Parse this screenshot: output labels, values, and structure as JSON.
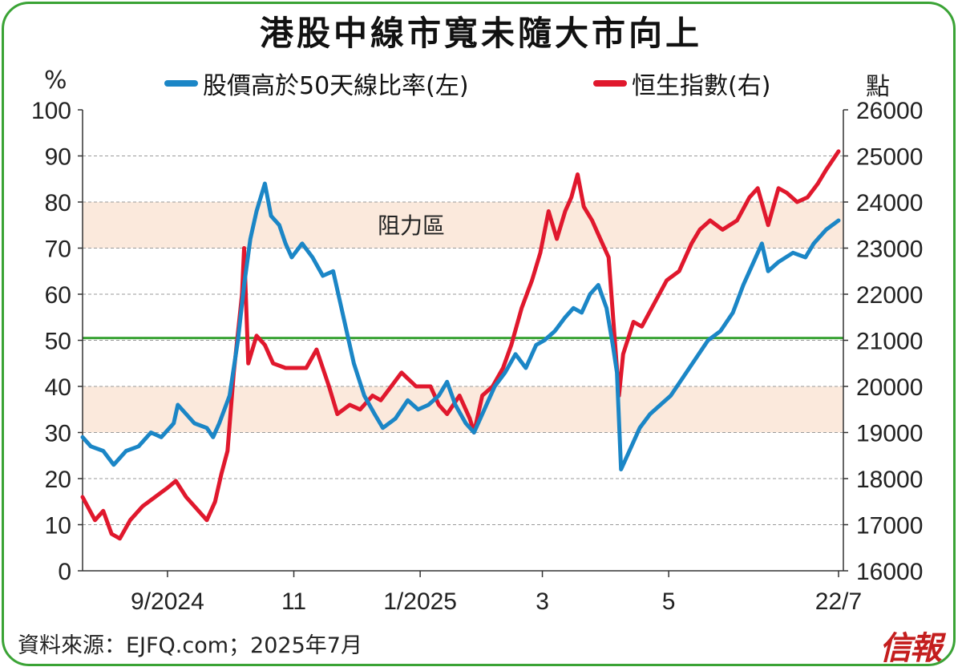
{
  "title": "港股中線市寬未隨大市向上",
  "left_unit": "%",
  "right_unit": "點",
  "legend": {
    "series1": "股價高於50天線比率(左)",
    "series2": "恒生指數(右)"
  },
  "source": "資料來源：EJFQ.com；2025年7月",
  "logo": "信報",
  "colors": {
    "blue": "#1b86c6",
    "red": "#e0182d",
    "green": "#3aa335",
    "band": "#fbe9dc"
  },
  "chart_data": {
    "type": "line",
    "title": "港股中線市寬未隨大市向上",
    "x_start": "2024-07-22",
    "x_end": "2025-07-22",
    "x_ticks": [
      {
        "label": "9/2024",
        "date": "2024-09-01"
      },
      {
        "label": "11",
        "date": "2024-11-01"
      },
      {
        "label": "1/2025",
        "date": "2025-01-01"
      },
      {
        "label": "3",
        "date": "2025-03-01"
      },
      {
        "label": "5",
        "date": "2025-05-01"
      },
      {
        "label": "22/7",
        "date": "2025-07-22"
      }
    ],
    "y_left": {
      "label": "%",
      "min": 0,
      "max": 100,
      "step": 10,
      "ticks": [
        "0",
        "10",
        "20",
        "30",
        "40",
        "50",
        "60",
        "70",
        "80",
        "90",
        "100"
      ]
    },
    "y_right": {
      "label": "點",
      "min": 16000,
      "max": 26000,
      "step": 1000,
      "ticks": [
        "16000",
        "17000",
        "18000",
        "19000",
        "20000",
        "21000",
        "22000",
        "23000",
        "24000",
        "25000",
        "26000"
      ]
    },
    "reference_line": {
      "axis": "left",
      "value": 50.5
    },
    "bands": [
      {
        "label": "阻力區",
        "from": 70,
        "to": 80
      },
      {
        "label": "",
        "from": 30,
        "to": 40
      }
    ],
    "grid": true,
    "series": [
      {
        "name": "股價高於50天線比率(左)",
        "axis": "left",
        "color": "#1b86c6",
        "points": [
          [
            "2024-07-22",
            29
          ],
          [
            "2024-07-26",
            27
          ],
          [
            "2024-08-01",
            26
          ],
          [
            "2024-08-06",
            23
          ],
          [
            "2024-08-12",
            26
          ],
          [
            "2024-08-18",
            27
          ],
          [
            "2024-08-24",
            30
          ],
          [
            "2024-08-29",
            29
          ],
          [
            "2024-09-04",
            32
          ],
          [
            "2024-09-06",
            36
          ],
          [
            "2024-09-10",
            34
          ],
          [
            "2024-09-14",
            32
          ],
          [
            "2024-09-20",
            31
          ],
          [
            "2024-09-23",
            29
          ],
          [
            "2024-09-26",
            32
          ],
          [
            "2024-10-01",
            38
          ],
          [
            "2024-10-05",
            50
          ],
          [
            "2024-10-08",
            62
          ],
          [
            "2024-10-11",
            72
          ],
          [
            "2024-10-14",
            78
          ],
          [
            "2024-10-18",
            84
          ],
          [
            "2024-10-21",
            77
          ],
          [
            "2024-10-25",
            75
          ],
          [
            "2024-10-28",
            71
          ],
          [
            "2024-10-31",
            68
          ],
          [
            "2024-11-05",
            71
          ],
          [
            "2024-11-10",
            68
          ],
          [
            "2024-11-15",
            64
          ],
          [
            "2024-11-20",
            65
          ],
          [
            "2024-11-25",
            55
          ],
          [
            "2024-11-30",
            45
          ],
          [
            "2024-12-05",
            38
          ],
          [
            "2024-12-10",
            34
          ],
          [
            "2024-12-14",
            31
          ],
          [
            "2024-12-20",
            33
          ],
          [
            "2024-12-26",
            37
          ],
          [
            "2024-12-31",
            35
          ],
          [
            "2025-01-05",
            36
          ],
          [
            "2025-01-10",
            38
          ],
          [
            "2025-01-14",
            41
          ],
          [
            "2025-01-18",
            36
          ],
          [
            "2025-01-23",
            32
          ],
          [
            "2025-01-27",
            30
          ],
          [
            "2025-02-01",
            35
          ],
          [
            "2025-02-06",
            40
          ],
          [
            "2025-02-11",
            43
          ],
          [
            "2025-02-16",
            47
          ],
          [
            "2025-02-21",
            44
          ],
          [
            "2025-02-26",
            49
          ],
          [
            "2025-03-02",
            50
          ],
          [
            "2025-03-07",
            52
          ],
          [
            "2025-03-12",
            55
          ],
          [
            "2025-03-16",
            57
          ],
          [
            "2025-03-20",
            56
          ],
          [
            "2025-03-24",
            60
          ],
          [
            "2025-03-28",
            62
          ],
          [
            "2025-04-01",
            57
          ],
          [
            "2025-04-04",
            49
          ],
          [
            "2025-04-06",
            43
          ],
          [
            "2025-04-08",
            22
          ],
          [
            "2025-04-12",
            26
          ],
          [
            "2025-04-17",
            31
          ],
          [
            "2025-04-22",
            34
          ],
          [
            "2025-04-27",
            36
          ],
          [
            "2025-05-02",
            38
          ],
          [
            "2025-05-08",
            42
          ],
          [
            "2025-05-14",
            46
          ],
          [
            "2025-05-20",
            50
          ],
          [
            "2025-05-26",
            52
          ],
          [
            "2025-06-01",
            56
          ],
          [
            "2025-06-06",
            62
          ],
          [
            "2025-06-11",
            67
          ],
          [
            "2025-06-15",
            71
          ],
          [
            "2025-06-18",
            65
          ],
          [
            "2025-06-23",
            67
          ],
          [
            "2025-06-30",
            69
          ],
          [
            "2025-07-06",
            68
          ],
          [
            "2025-07-10",
            71
          ],
          [
            "2025-07-16",
            74
          ],
          [
            "2025-07-22",
            76
          ]
        ]
      },
      {
        "name": "恒生指數(右)",
        "axis": "right",
        "color": "#e0182d",
        "points": [
          [
            "2024-07-22",
            17600
          ],
          [
            "2024-07-28",
            17100
          ],
          [
            "2024-08-01",
            17300
          ],
          [
            "2024-08-05",
            16800
          ],
          [
            "2024-08-09",
            16700
          ],
          [
            "2024-08-14",
            17100
          ],
          [
            "2024-08-20",
            17400
          ],
          [
            "2024-08-26",
            17600
          ],
          [
            "2024-09-01",
            17800
          ],
          [
            "2024-09-05",
            17950
          ],
          [
            "2024-09-10",
            17600
          ],
          [
            "2024-09-16",
            17300
          ],
          [
            "2024-09-20",
            17100
          ],
          [
            "2024-09-24",
            17500
          ],
          [
            "2024-09-27",
            18100
          ],
          [
            "2024-09-30",
            18600
          ],
          [
            "2024-10-03",
            20300
          ],
          [
            "2024-10-07",
            22000
          ],
          [
            "2024-10-08",
            23000
          ],
          [
            "2024-10-10",
            20500
          ],
          [
            "2024-10-14",
            21100
          ],
          [
            "2024-10-18",
            20900
          ],
          [
            "2024-10-22",
            20500
          ],
          [
            "2024-10-28",
            20400
          ],
          [
            "2024-11-01",
            20400
          ],
          [
            "2024-11-07",
            20400
          ],
          [
            "2024-11-12",
            20800
          ],
          [
            "2024-11-18",
            20000
          ],
          [
            "2024-11-22",
            19400
          ],
          [
            "2024-11-28",
            19600
          ],
          [
            "2024-12-03",
            19500
          ],
          [
            "2024-12-09",
            19800
          ],
          [
            "2024-12-13",
            19700
          ],
          [
            "2024-12-18",
            20000
          ],
          [
            "2024-12-23",
            20300
          ],
          [
            "2024-12-30",
            20000
          ],
          [
            "2025-01-06",
            20000
          ],
          [
            "2025-01-10",
            19600
          ],
          [
            "2025-01-14",
            19400
          ],
          [
            "2025-01-20",
            19800
          ],
          [
            "2025-01-25",
            19300
          ],
          [
            "2025-01-27",
            19000
          ],
          [
            "2025-01-31",
            19800
          ],
          [
            "2025-02-05",
            20000
          ],
          [
            "2025-02-10",
            20400
          ],
          [
            "2025-02-14",
            20900
          ],
          [
            "2025-02-19",
            21700
          ],
          [
            "2025-02-24",
            22300
          ],
          [
            "2025-02-28",
            22900
          ],
          [
            "2025-03-04",
            23800
          ],
          [
            "2025-03-08",
            23200
          ],
          [
            "2025-03-12",
            23800
          ],
          [
            "2025-03-15",
            24100
          ],
          [
            "2025-03-18",
            24600
          ],
          [
            "2025-03-21",
            23900
          ],
          [
            "2025-03-25",
            23600
          ],
          [
            "2025-03-28",
            23300
          ],
          [
            "2025-04-02",
            22800
          ],
          [
            "2025-04-07",
            19800
          ],
          [
            "2025-04-09",
            20700
          ],
          [
            "2025-04-14",
            21400
          ],
          [
            "2025-04-18",
            21300
          ],
          [
            "2025-04-24",
            21800
          ],
          [
            "2025-04-30",
            22300
          ],
          [
            "2025-05-06",
            22500
          ],
          [
            "2025-05-12",
            23100
          ],
          [
            "2025-05-16",
            23400
          ],
          [
            "2025-05-21",
            23600
          ],
          [
            "2025-05-27",
            23400
          ],
          [
            "2025-06-03",
            23600
          ],
          [
            "2025-06-09",
            24100
          ],
          [
            "2025-06-13",
            24300
          ],
          [
            "2025-06-18",
            23500
          ],
          [
            "2025-06-23",
            24300
          ],
          [
            "2025-06-27",
            24200
          ],
          [
            "2025-07-02",
            24000
          ],
          [
            "2025-07-07",
            24100
          ],
          [
            "2025-07-12",
            24400
          ],
          [
            "2025-07-16",
            24700
          ],
          [
            "2025-07-22",
            25100
          ]
        ]
      }
    ]
  }
}
